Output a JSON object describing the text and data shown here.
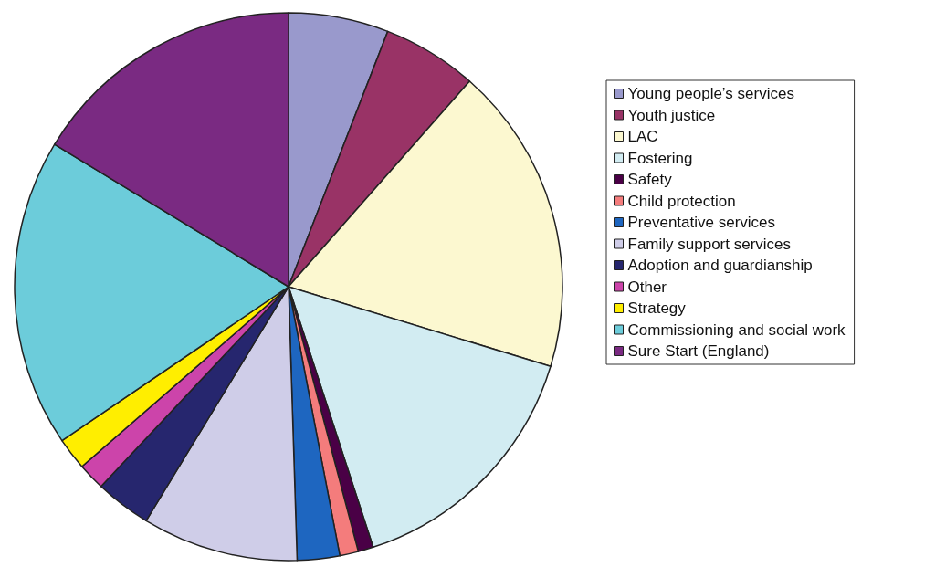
{
  "chart_data": {
    "type": "pie",
    "categories": [
      "Young people’s services",
      "Youth justice",
      "LAC",
      "Fostering",
      "Safety",
      "Child protection",
      "Preventative services",
      "Family support services",
      "Adoption and guardianship",
      "Other",
      "Strategy",
      "Commissioning and social work",
      "Sure Start (England)"
    ],
    "values": [
      5.9,
      5.6,
      18.2,
      15.3,
      0.9,
      1.1,
      2.5,
      9.2,
      3.3,
      1.6,
      1.9,
      18.2,
      16.3
    ],
    "colors": [
      "#9999cc",
      "#993366",
      "#fcf8d0",
      "#d2ecf2",
      "#4a0046",
      "#f47c7c",
      "#1e66c0",
      "#cfcde8",
      "#26266e",
      "#cc44aa",
      "#ffee00",
      "#6cccda",
      "#7a2a82"
    ],
    "legend": "right"
  }
}
